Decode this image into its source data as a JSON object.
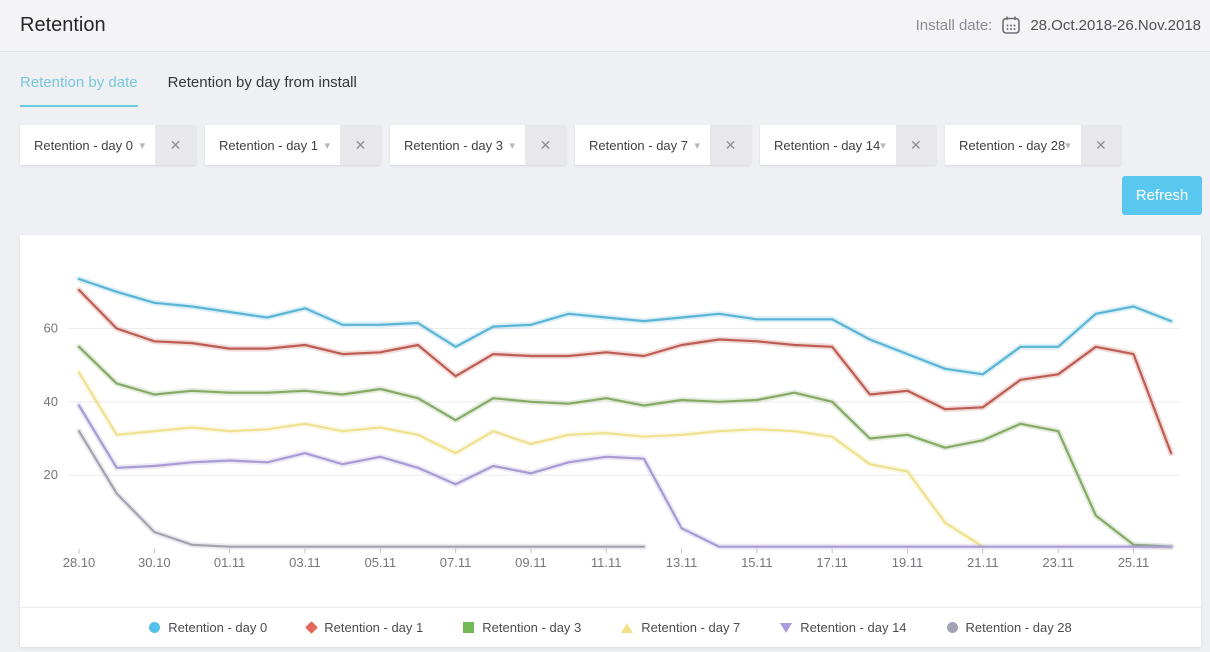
{
  "header": {
    "title": "Retention",
    "install_date_label": "Install date:",
    "install_date_value": "28.Oct.2018-26.Nov.2018"
  },
  "tabs": [
    {
      "label": "Retention by date",
      "active": true
    },
    {
      "label": "Retention by day from install",
      "active": false
    }
  ],
  "filters": {
    "chips": [
      {
        "label": "Retention - day 0"
      },
      {
        "label": "Retention - day 1"
      },
      {
        "label": "Retention - day 3"
      },
      {
        "label": "Retention - day 7"
      },
      {
        "label": "Retention - day 14"
      },
      {
        "label": "Retention - day 28"
      }
    ],
    "icons": {
      "chevron_down": "▾",
      "close": "✕"
    }
  },
  "toolbar": {
    "refresh_label": "Refresh"
  },
  "colors": {
    "accent_cyan": "#66cbdb",
    "refresh_button": "#5ac7ef",
    "gridline": "#ececef",
    "axis_text": "#75757d",
    "tick": "#c6c6cc"
  },
  "chart_data": {
    "type": "line",
    "title": "Retention by date",
    "x_start_date": "28.10.2018",
    "x_days_total": 30,
    "x_tick_every": 2,
    "x_tick_labels": [
      "28.10",
      "30.10",
      "01.11",
      "03.11",
      "05.11",
      "07.11",
      "09.11",
      "11.11",
      "13.11",
      "15.11",
      "17.11",
      "19.11",
      "21.11",
      "23.11",
      "25.11"
    ],
    "y_ticks": [
      20,
      40,
      60
    ],
    "ylim": [
      0,
      78
    ],
    "grid": "horizontal-only",
    "legend_position": "bottom",
    "series": [
      {
        "name": "Retention - day 0",
        "marker": "circle",
        "line_color": "#5ab4d6",
        "legend_color": "#53c1e8",
        "values": [
          73.5,
          70,
          67,
          66,
          64.5,
          63,
          65.5,
          61,
          61,
          61.5,
          55,
          60.5,
          61,
          64,
          63,
          62,
          63,
          64,
          62.5,
          62.5,
          62.5,
          57,
          53,
          49,
          47.5,
          55,
          55,
          64,
          66,
          62
        ]
      },
      {
        "name": "Retention - day 1",
        "marker": "diamond",
        "line_color": "#bd5c52",
        "legend_color": "#e2685a",
        "values": [
          70.5,
          60,
          56.5,
          56,
          54.5,
          54.5,
          55.5,
          53,
          53.5,
          55.5,
          47,
          53,
          52.5,
          52.5,
          53.5,
          52.5,
          55.5,
          57,
          56.5,
          55.5,
          55,
          42,
          43,
          38,
          38.5,
          46,
          47.5,
          55,
          53,
          26
        ]
      },
      {
        "name": "Retention - day 3",
        "marker": "square",
        "line_color": "#84aa65",
        "legend_color": "#74b957",
        "values": [
          55,
          45,
          42,
          43,
          42.5,
          42.5,
          43,
          42,
          43.5,
          41,
          35,
          41,
          40,
          39.5,
          41,
          39,
          40.5,
          40,
          40.5,
          42.5,
          40,
          30,
          31,
          27.5,
          29.5,
          34,
          32,
          9,
          1,
          0.5
        ]
      },
      {
        "name": "Retention - day 7",
        "marker": "triangle-up",
        "line_color": "#efe18f",
        "legend_color": "#f2e187",
        "values": [
          48,
          31,
          32,
          33,
          32,
          32.5,
          34,
          32,
          33,
          31,
          26,
          32,
          28.5,
          31,
          31.5,
          30.5,
          31,
          32,
          32.5,
          32,
          30.5,
          23,
          21,
          7,
          0.5
        ]
      },
      {
        "name": "Retention - day 14",
        "marker": "triangle-down",
        "line_color": "#a89ad3",
        "legend_color": "#a99ad8",
        "values": [
          39,
          22,
          22.5,
          23.5,
          24,
          23.5,
          26,
          23,
          25,
          22,
          17.5,
          22.5,
          20.5,
          23.5,
          25,
          24.5,
          5.5,
          0.5,
          0.5,
          0.5,
          0.5,
          0.5,
          0.5,
          0.5,
          0.5,
          0.5,
          0.5,
          0.5,
          0.5,
          0.5
        ]
      },
      {
        "name": "Retention - day 28",
        "marker": "circle",
        "line_color": "#a6a1b1",
        "legend_color": "#a4a3b5",
        "values": [
          32,
          15,
          4.5,
          1,
          0.5,
          0.5,
          0.5,
          0.5,
          0.5,
          0.5,
          0.5,
          0.5,
          0.5,
          0.5,
          0.5,
          0.5
        ]
      }
    ]
  }
}
